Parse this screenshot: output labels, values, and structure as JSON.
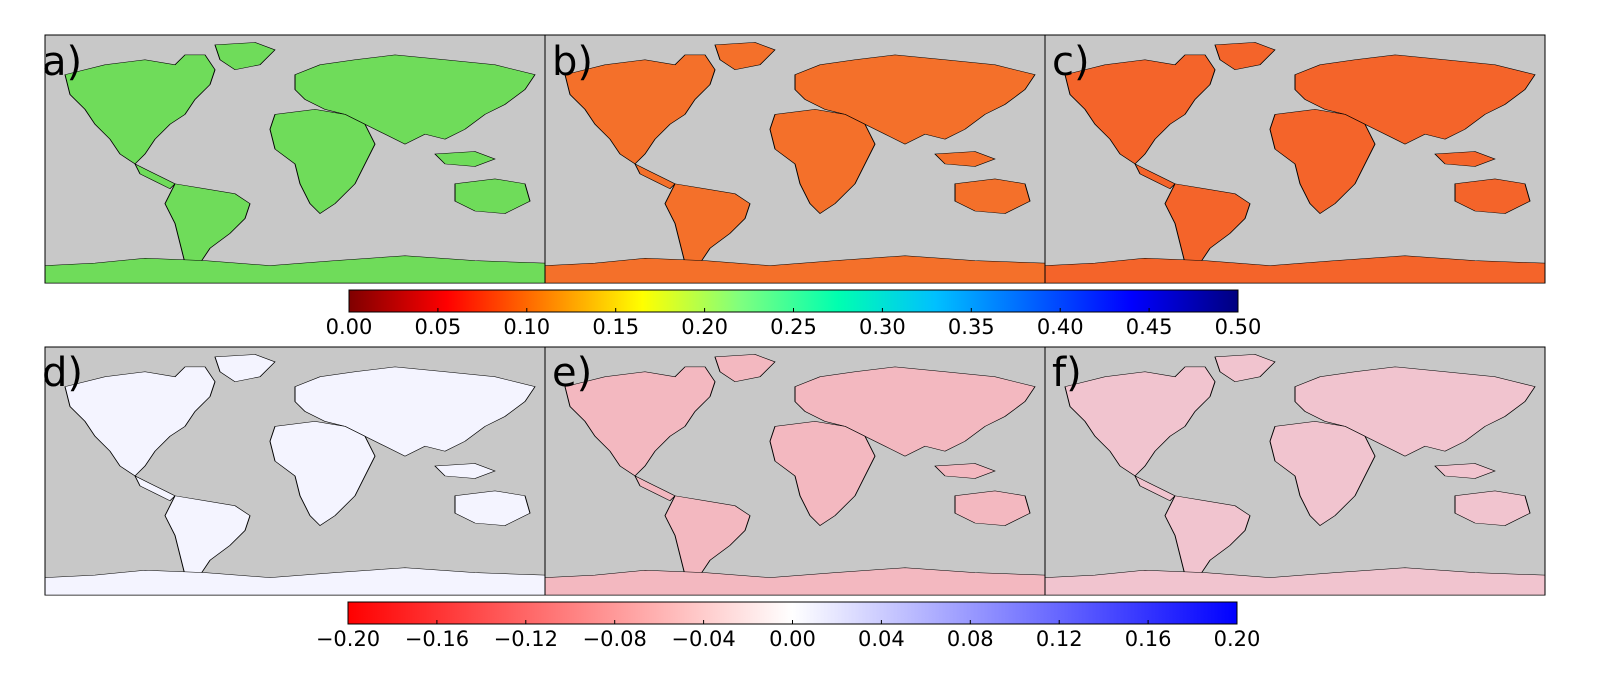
{
  "panels": [
    {
      "id": "a",
      "label": "a)"
    },
    {
      "id": "b",
      "label": "b)"
    },
    {
      "id": "c",
      "label": "c)"
    },
    {
      "id": "d",
      "label": "d)"
    },
    {
      "id": "e",
      "label": "e)"
    },
    {
      "id": "f",
      "label": "f)"
    }
  ],
  "colorbar_top": {
    "colormap": "jet-reversed",
    "range": [
      0.0,
      0.5
    ],
    "ticks": [
      "0.00",
      "0.05",
      "0.10",
      "0.15",
      "0.20",
      "0.25",
      "0.30",
      "0.35",
      "0.40",
      "0.45",
      "0.50"
    ]
  },
  "colorbar_bottom": {
    "colormap": "red-white-blue",
    "range": [
      -0.2,
      0.2
    ],
    "ticks": [
      "−0.20",
      "−0.16",
      "−0.12",
      "−0.08",
      "−0.04",
      "0.00",
      "0.04",
      "0.08",
      "0.12",
      "0.16",
      "0.20"
    ]
  },
  "colors": {
    "map_background": "#c8c8c8",
    "coastline": "#000000"
  }
}
